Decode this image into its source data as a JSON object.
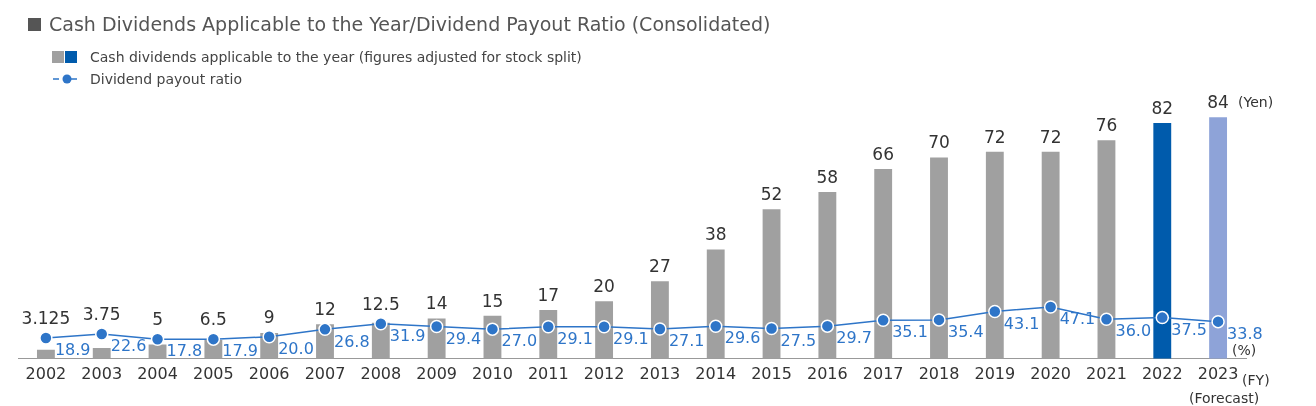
{
  "chart_data": {
    "type": "bar",
    "title": "Cash Dividends Applicable to the Year/Dividend Payout Ratio (Consolidated)",
    "categories": [
      "2002",
      "2003",
      "2004",
      "2005",
      "2006",
      "2007",
      "2008",
      "2009",
      "2010",
      "2011",
      "2012",
      "2013",
      "2014",
      "2015",
      "2016",
      "2017",
      "2018",
      "2019",
      "2020",
      "2021",
      "2022",
      "2023"
    ],
    "series": [
      {
        "name": "Cash dividends applicable to the year (figures adjusted for stock split)",
        "colors": [
          "#a0a0a0",
          "#a0a0a0",
          "#a0a0a0",
          "#a0a0a0",
          "#a0a0a0",
          "#a0a0a0",
          "#a0a0a0",
          "#a0a0a0",
          "#a0a0a0",
          "#a0a0a0",
          "#a0a0a0",
          "#a0a0a0",
          "#a0a0a0",
          "#a0a0a0",
          "#a0a0a0",
          "#a0a0a0",
          "#a0a0a0",
          "#a0a0a0",
          "#a0a0a0",
          "#a0a0a0",
          "#005bac",
          "#8ea3d8"
        ],
        "values": [
          3.125,
          3.75,
          5,
          6.5,
          9,
          12,
          12.5,
          14,
          15,
          17,
          20,
          27,
          38,
          52,
          58,
          66,
          70,
          72,
          72,
          76,
          82,
          84
        ],
        "value_labels": [
          "3.125",
          "3.75",
          "5",
          "6.5",
          "9",
          "12",
          "12.5",
          "14",
          "15",
          "17",
          "20",
          "27",
          "38",
          "52",
          "58",
          "66",
          "70",
          "72",
          "72",
          "76",
          "82",
          "84"
        ]
      },
      {
        "name": "Dividend payout ratio",
        "type": "line",
        "axis": "y2",
        "color": "#2e75c8",
        "values": [
          18.9,
          22.6,
          17.8,
          17.9,
          20.0,
          26.8,
          31.9,
          29.4,
          27.0,
          29.1,
          29.1,
          27.1,
          29.6,
          27.5,
          29.7,
          35.1,
          35.4,
          43.1,
          47.1,
          36.0,
          37.5,
          33.8
        ],
        "value_labels": [
          "18.9",
          "22.6",
          "17.8",
          "17.9",
          "20.0",
          "26.8",
          "31.9",
          "29.4",
          "27.0",
          "29.1",
          "29.1",
          "27.1",
          "29.6",
          "27.5",
          "29.7",
          "35.1",
          "35.4",
          "43.1",
          "47.1",
          "36.0",
          "37.5",
          "33.8"
        ]
      }
    ],
    "tick_labels": "x",
    "marker": "circle",
    "legend": "top left",
    "grid": false,
    "annotations": [
      "(Yen)",
      "(%)",
      "(FY)",
      "(Forecast)"
    ]
  }
}
